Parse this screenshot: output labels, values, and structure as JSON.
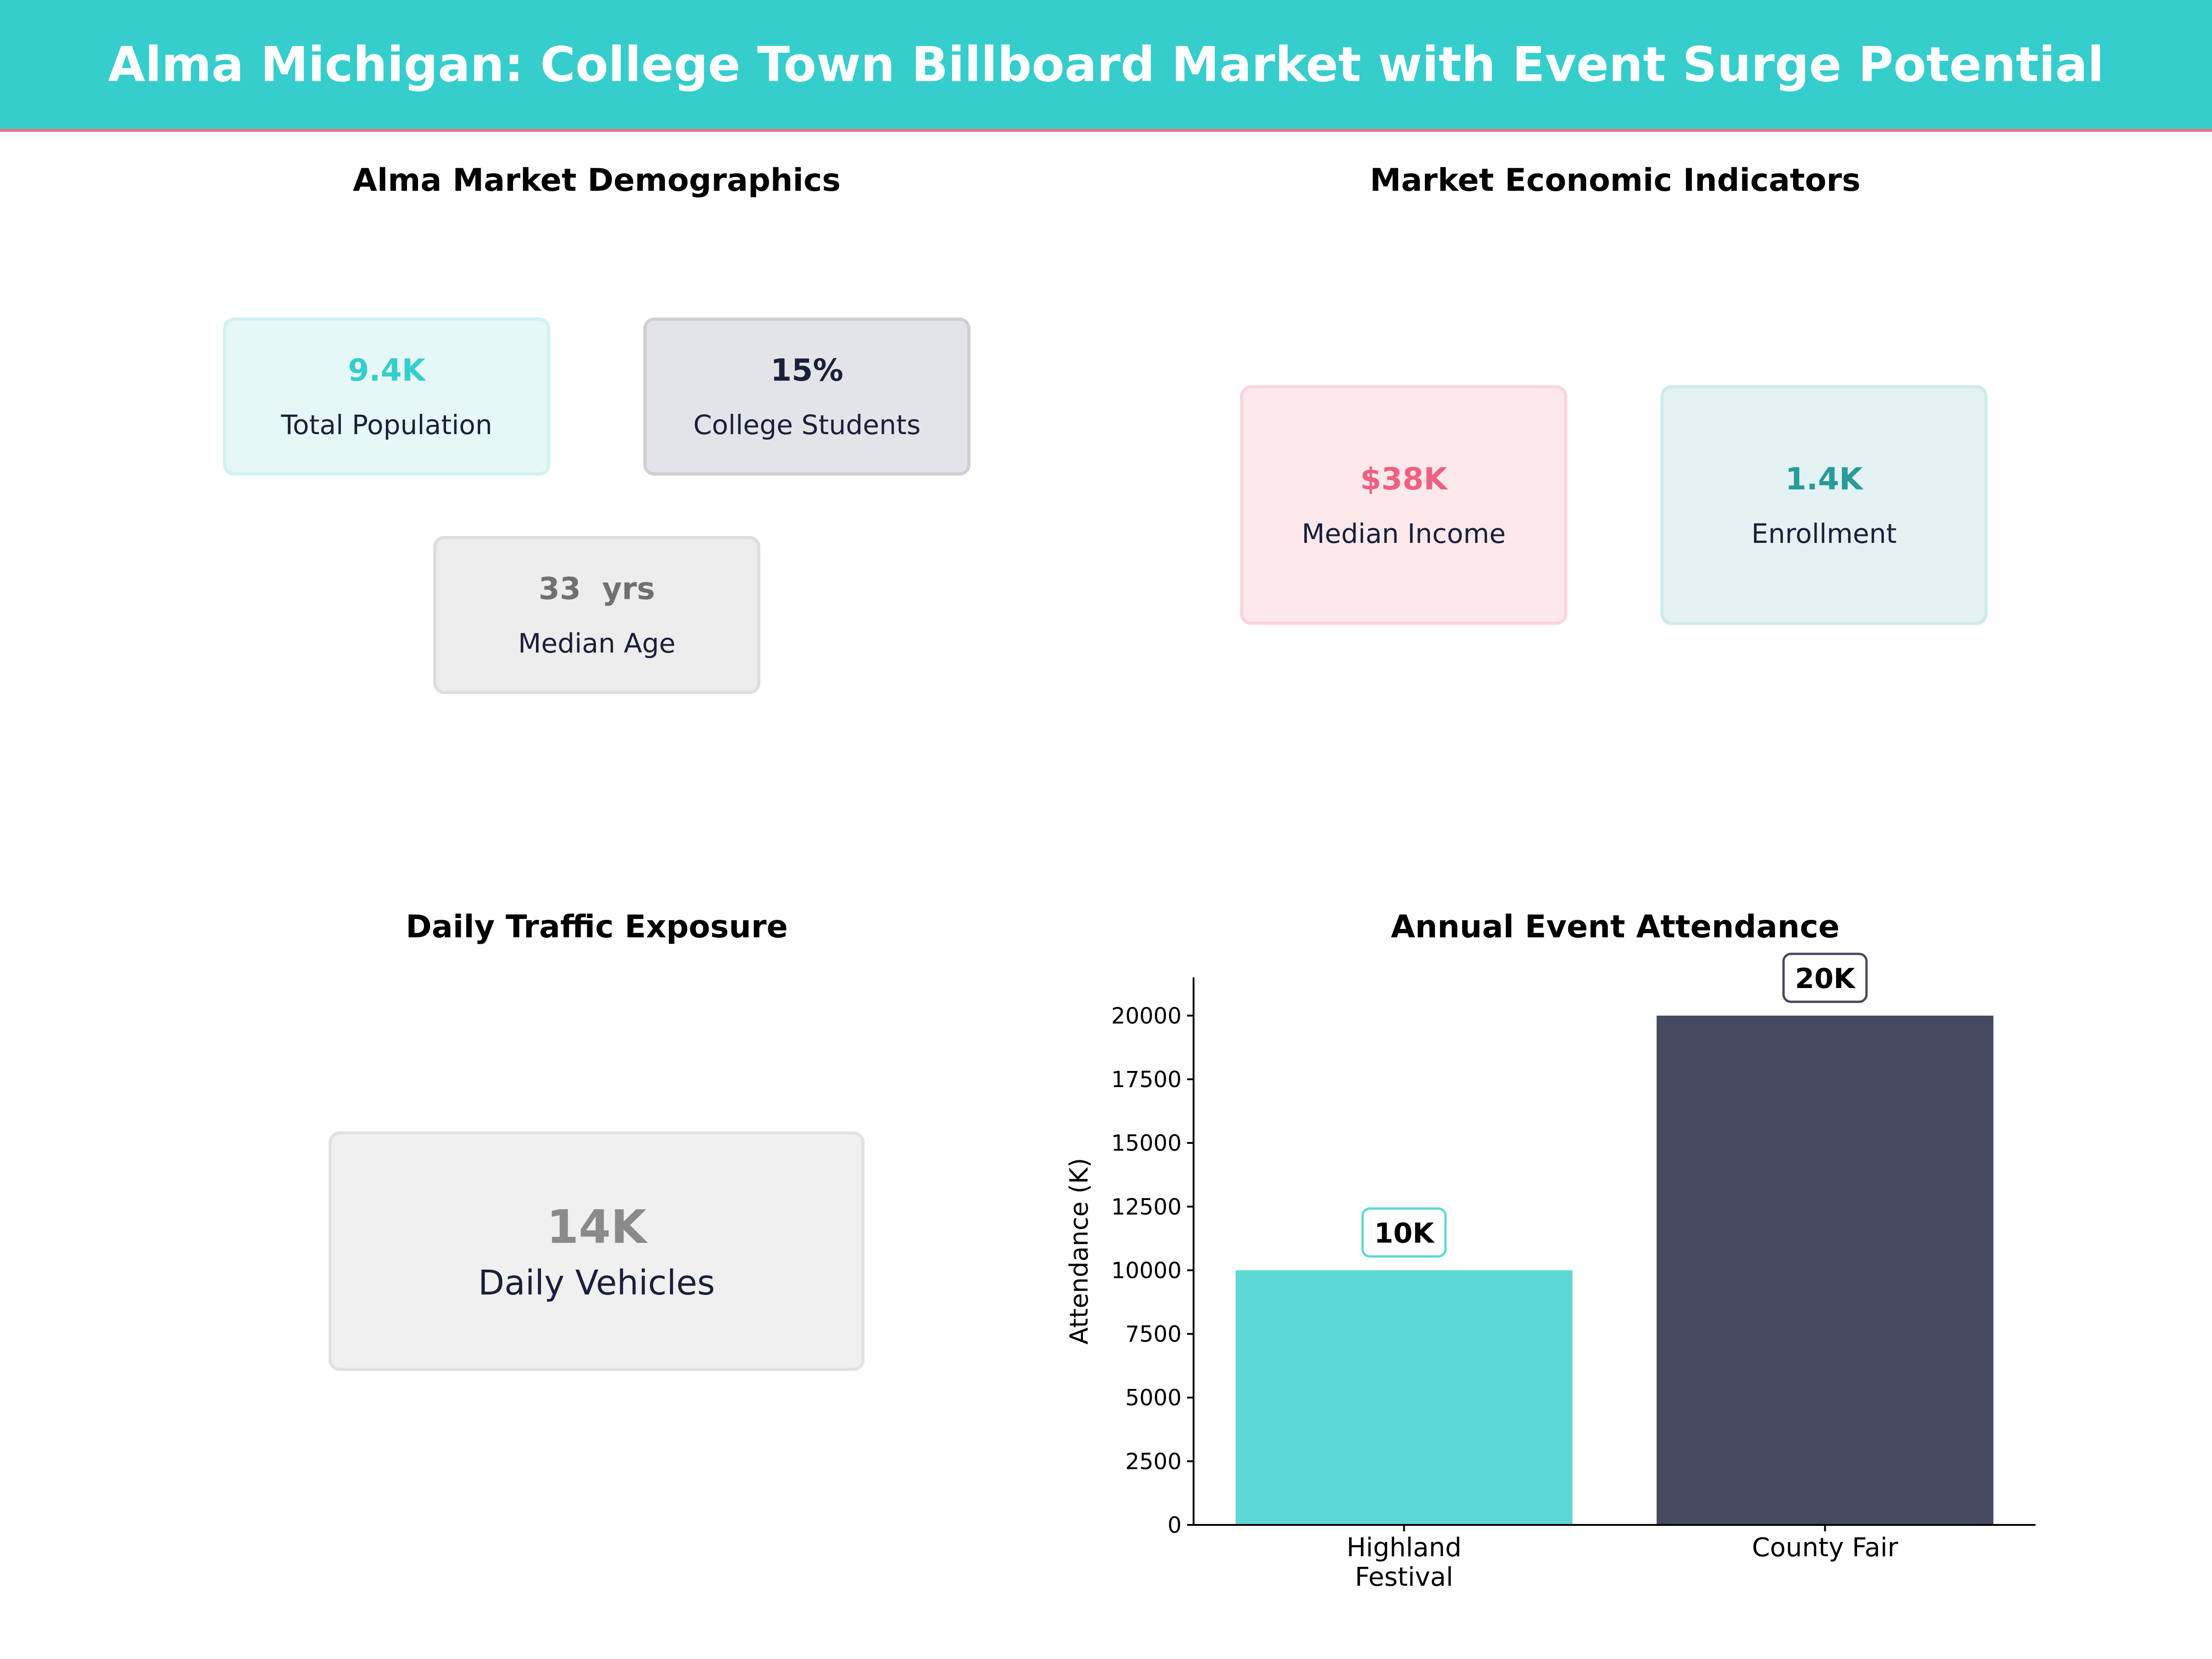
{
  "header": {
    "title": "Alma Michigan: College Town Billboard Market with Event Surge Potential"
  },
  "demographics": {
    "title": "Alma Market Demographics",
    "cards": [
      {
        "value": "9.4K",
        "label": "Total Population",
        "color": "#36cdcd"
      },
      {
        "value": "15%",
        "label": "College Students",
        "color": "#1a1f3a"
      },
      {
        "value": "33  yrs",
        "label": "Median Age",
        "color": "#707070"
      }
    ]
  },
  "economic": {
    "title": "Market Economic Indicators",
    "cards": [
      {
        "value": "$38K",
        "label": "Median Income",
        "color": "#f06080"
      },
      {
        "value": "1.4K",
        "label": "Enrollment",
        "color": "#2a9a9a"
      }
    ]
  },
  "traffic": {
    "title": "Daily Traffic Exposure",
    "value": "14K",
    "label": "Daily Vehicles",
    "color": "#8a8a8a"
  },
  "chart_data": {
    "type": "bar",
    "title": "Annual Event Attendance",
    "xlabel": "",
    "ylabel": "Attendance (K)",
    "categories": [
      "Highland\nFestival",
      "County Fair"
    ],
    "values": [
      10000,
      20000
    ],
    "data_labels": [
      "10K",
      "20K"
    ],
    "colors": [
      "#5dd8d4",
      "#454a60"
    ],
    "ylim": [
      0,
      21500
    ],
    "yticks": [
      0,
      2500,
      5000,
      7500,
      10000,
      12500,
      15000,
      17500,
      20000
    ],
    "grid": false
  }
}
